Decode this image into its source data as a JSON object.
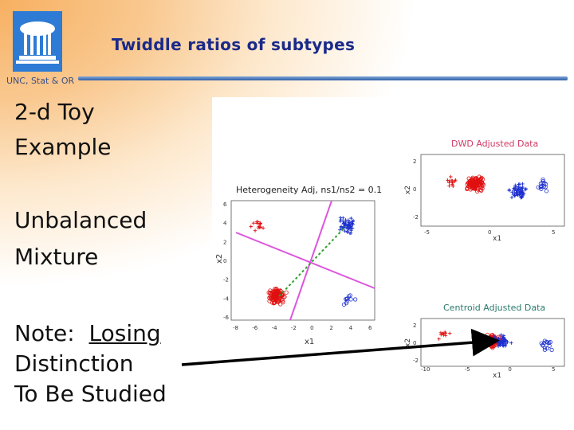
{
  "slide": {
    "title": "Twiddle ratios of subtypes",
    "institution": "UNC, Stat & OR",
    "lines": [
      "2-d Toy",
      "Example",
      "Unbalanced",
      "Mixture",
      "Note:  Losing",
      "Distinction",
      "To Be Studied"
    ],
    "underlined_word": "Losing"
  },
  "figures": {
    "main": {
      "title": "Heterogeneity Adj, ns1/ns2 = 0.1",
      "xlabel": "x1",
      "ylabel": "x2",
      "xticks": [
        "-8",
        "-6",
        "-4",
        "-2",
        "0",
        "2",
        "4",
        "6"
      ],
      "yticks": [
        "6",
        "4",
        "2",
        "0",
        "-2",
        "-4",
        "-6"
      ]
    },
    "dwd": {
      "title": "DWD Adjusted Data",
      "xlabel": "x1",
      "ylabel": "x2",
      "xticks": [
        "-5",
        "0",
        "5"
      ],
      "yticks": [
        "2",
        "0",
        "-2"
      ]
    },
    "centroid": {
      "title": "Centroid Adjusted Data",
      "xlabel": "x1",
      "ylabel": "x2",
      "xticks": [
        "-10",
        "-5",
        "0",
        "5"
      ],
      "yticks": [
        "2",
        "0",
        "-2"
      ]
    }
  },
  "colors": {
    "title": "#1a2a8a",
    "class1": "#e01010",
    "class2": "#1c2fd0",
    "direction_line": "#dd55dd",
    "centroid_line": "#2aa02a"
  }
}
